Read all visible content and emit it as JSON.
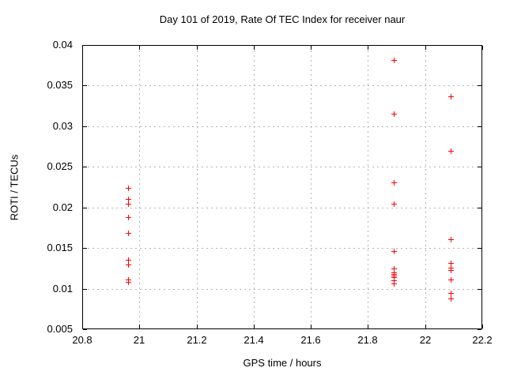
{
  "colors": {
    "background": "#ffffff",
    "axis": "#000000",
    "grid": "#b3b3b3",
    "marker": "#ff0000",
    "text": "#000000"
  },
  "chart_data": {
    "type": "scatter",
    "title": "Day 101 of 2019, Rate Of TEC Index for receiver naur",
    "xlabel": "GPS time / hours",
    "ylabel": "ROTI / TECUs",
    "xlim": [
      20.8,
      22.2
    ],
    "ylim": [
      0.005,
      0.04
    ],
    "xtick_values": [
      20.8,
      21.0,
      21.2,
      21.4,
      21.6,
      21.8,
      22.0,
      22.2
    ],
    "xtick_labels": [
      "20.8",
      "21",
      "21.2",
      "21.4",
      "21.6",
      "21.8",
      "22",
      "22.2"
    ],
    "ytick_values": [
      0.005,
      0.01,
      0.015,
      0.02,
      0.025,
      0.03,
      0.035,
      0.04
    ],
    "ytick_labels": [
      "0.005",
      "0.01",
      "0.015",
      "0.02",
      "0.025",
      "0.03",
      "0.035",
      "0.04"
    ],
    "grid": true,
    "legend_position": "none",
    "marker_shape": "plus",
    "marker_size": 7,
    "series": [
      {
        "name": "ROTI",
        "points": [
          [
            20.96,
            0.0224
          ],
          [
            20.96,
            0.021
          ],
          [
            20.96,
            0.0205
          ],
          [
            20.96,
            0.0188
          ],
          [
            20.96,
            0.0169
          ],
          [
            20.96,
            0.0136
          ],
          [
            20.96,
            0.013
          ],
          [
            20.96,
            0.0111
          ],
          [
            20.96,
            0.0108
          ],
          [
            21.89,
            0.0382
          ],
          [
            21.89,
            0.0315
          ],
          [
            21.89,
            0.0231
          ],
          [
            21.89,
            0.0205
          ],
          [
            21.89,
            0.0146
          ],
          [
            21.89,
            0.0125
          ],
          [
            21.89,
            0.012
          ],
          [
            21.89,
            0.0118
          ],
          [
            21.89,
            0.0116
          ],
          [
            21.89,
            0.0114
          ],
          [
            21.89,
            0.011
          ],
          [
            21.89,
            0.0106
          ],
          [
            22.09,
            0.0337
          ],
          [
            22.09,
            0.027
          ],
          [
            22.09,
            0.0161
          ],
          [
            22.09,
            0.0132
          ],
          [
            22.09,
            0.0126
          ],
          [
            22.09,
            0.0123
          ],
          [
            22.09,
            0.0111
          ],
          [
            22.09,
            0.0095
          ],
          [
            22.09,
            0.0088
          ]
        ]
      }
    ]
  }
}
